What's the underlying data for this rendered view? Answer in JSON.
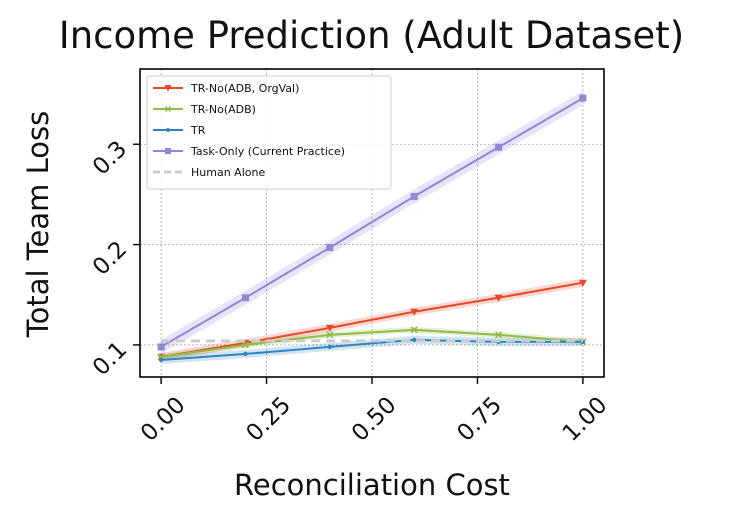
{
  "chart_data": {
    "type": "line",
    "title": "Income Prediction (Adult Dataset)",
    "xlabel": "Reconciliation Cost",
    "ylabel": "Total Team Loss",
    "x": [
      0.0,
      0.2,
      0.4,
      0.6,
      0.8,
      1.0
    ],
    "xlim": [
      -0.05,
      1.05
    ],
    "ylim": [
      0.068,
      0.375
    ],
    "xticks": [
      "0.00",
      "0.25",
      "0.50",
      "0.75",
      "1.00"
    ],
    "xtick_values": [
      0.0,
      0.25,
      0.5,
      0.75,
      1.0
    ],
    "yticks": [
      "0.1",
      "0.2",
      "0.3"
    ],
    "ytick_values": [
      0.1,
      0.2,
      0.3
    ],
    "grid": true,
    "legend_position": "upper-left",
    "series": [
      {
        "name": "TR-No(ADB, OrgVal)",
        "color": "#e8472b",
        "marker": "triangle-down",
        "values": [
          0.088,
          0.102,
          0.117,
          0.133,
          0.147,
          0.162
        ],
        "band": 0.004
      },
      {
        "name": "TR-No(ADB)",
        "color": "#8fbb47",
        "marker": "x",
        "values": [
          0.088,
          0.1,
          0.11,
          0.115,
          0.11,
          0.103
        ],
        "band": 0.003
      },
      {
        "name": "TR",
        "color": "#2e86c1",
        "marker": "dot",
        "values": [
          0.085,
          0.091,
          0.098,
          0.105,
          0.103,
          0.103
        ],
        "band": 0.004
      },
      {
        "name": "Task-Only (Current Practice)",
        "color": "#9386d6",
        "marker": "square",
        "values": [
          0.098,
          0.147,
          0.197,
          0.248,
          0.297,
          0.346
        ],
        "band": 0.007
      },
      {
        "name": "Human Alone",
        "color": "#cccccc",
        "marker": "none",
        "dashed": true,
        "values": [
          0.104,
          0.104,
          0.104,
          0.104,
          0.104,
          0.104
        ]
      }
    ]
  }
}
